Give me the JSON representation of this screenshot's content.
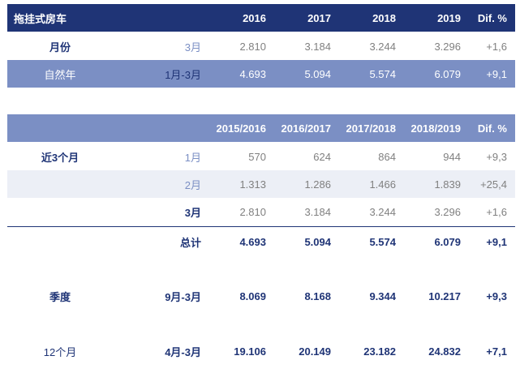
{
  "table1": {
    "header": {
      "label": "拖挂式房车",
      "cols": [
        "2016",
        "2017",
        "2018",
        "2019",
        "Dif. %"
      ]
    },
    "rows": [
      {
        "label": "月份",
        "sub": "3月",
        "values": [
          "2.810",
          "3.184",
          "3.244",
          "3.296",
          "+1,6"
        ]
      },
      {
        "label": "自然年",
        "sub": "1月-3月",
        "values": [
          "4.693",
          "5.094",
          "5.574",
          "6.079",
          "+9,1"
        ]
      }
    ]
  },
  "table2": {
    "header": {
      "label": "",
      "cols": [
        "2015/2016",
        "2016/2017",
        "2017/2018",
        "2018/2019",
        "Dif. %"
      ]
    },
    "rows": [
      {
        "label": "近3个月",
        "sub": "1月",
        "values": [
          "570",
          "624",
          "864",
          "944",
          "+9,3"
        ]
      },
      {
        "label": "",
        "sub": "2月",
        "values": [
          "1.313",
          "1.286",
          "1.466",
          "1.839",
          "+25,4"
        ]
      },
      {
        "label": "",
        "sub": "3月",
        "values": [
          "2.810",
          "3.184",
          "3.244",
          "3.296",
          "+1,6"
        ]
      },
      {
        "label": "",
        "sub": "总计",
        "values": [
          "4.693",
          "5.094",
          "5.574",
          "6.079",
          "+9,1"
        ]
      },
      {
        "label": "季度",
        "sub": "9月-3月",
        "values": [
          "8.069",
          "8.168",
          "9.344",
          "10.217",
          "+9,3"
        ]
      },
      {
        "label": "12个月",
        "sub": "4月-3月",
        "values": [
          "19.106",
          "20.149",
          "23.182",
          "24.832",
          "+7,1"
        ]
      }
    ]
  },
  "colors": {
    "header": "#1f3476",
    "highlight": "#7b8fc4",
    "alt": "#eceff6",
    "text_gray": "#808080"
  }
}
